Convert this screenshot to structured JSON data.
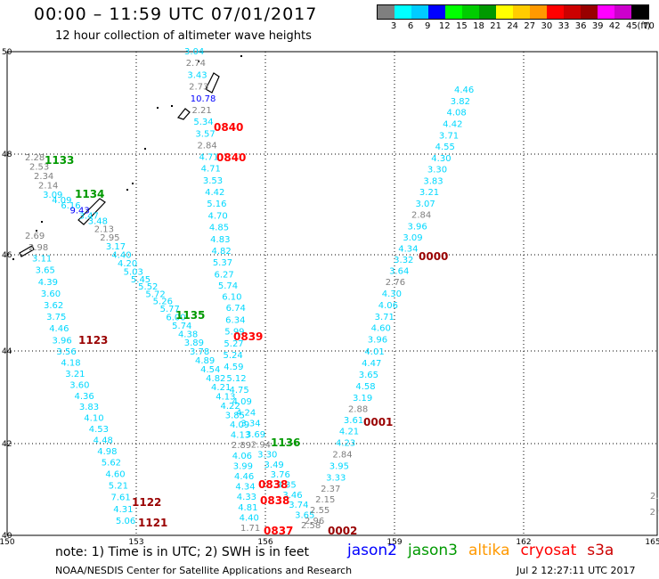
{
  "header": {
    "title": "00:00 – 11:59 UTC 07/01/2017",
    "subtitle": "12 hour collection of altimeter wave heights"
  },
  "legend": {
    "colors": [
      "#7f7f7f",
      "#00ffff",
      "#00ccff",
      "#0000ff",
      "#00ff00",
      "#00cc00",
      "#009900",
      "#ffff00",
      "#ffcc00",
      "#ff9900",
      "#ff0000",
      "#cc0000",
      "#990000",
      "#ff00ff",
      "#cc00cc",
      "#000000"
    ],
    "labels": [
      "3",
      "6",
      "9",
      "12",
      "15",
      "18",
      "21",
      "24",
      "27",
      "30",
      "33",
      "36",
      "39",
      "42",
      "45",
      "70",
      "(ft)"
    ]
  },
  "axes": {
    "x_labels": [
      "150",
      "153",
      "156",
      "159",
      "162",
      "165"
    ],
    "y_labels": [
      "50",
      "48",
      "46",
      "44",
      "42",
      "40"
    ]
  },
  "footer": {
    "note": "note:  1) Time is in UTC;  2) SWH is in feet",
    "satellites": [
      {
        "name": "jason2",
        "color": "#0000ff"
      },
      {
        "name": "jason3",
        "color": "#009900"
      },
      {
        "name": "altika",
        "color": "#ff9900"
      },
      {
        "name": "cryosat",
        "color": "#ff0000"
      },
      {
        "name": "s3a",
        "color": "#cc0000"
      }
    ],
    "credit": "NOAA/NESDIS Center for Satellite Applications and Research",
    "timestamp": "Jul  2 12:27:11 UTC 2017"
  },
  "time_labels": [
    {
      "text": "0840",
      "color": "#ff0000"
    },
    {
      "text": "0840",
      "color": "#ff0000"
    },
    {
      "text": "1133",
      "color": "#009900"
    },
    {
      "text": "1134",
      "color": "#009900"
    },
    {
      "text": "0000",
      "color": "#990000"
    },
    {
      "text": "1135",
      "color": "#009900"
    },
    {
      "text": "0839",
      "color": "#ff0000"
    },
    {
      "text": "1123",
      "color": "#990000"
    },
    {
      "text": "0001",
      "color": "#990000"
    },
    {
      "text": "1136",
      "color": "#009900"
    },
    {
      "text": "0838",
      "color": "#ff0000"
    },
    {
      "text": "0838",
      "color": "#ff0000"
    },
    {
      "text": "1122",
      "color": "#990000"
    },
    {
      "text": "1121",
      "color": "#990000"
    },
    {
      "text": "0837",
      "color": "#ff0000"
    },
    {
      "text": "0002",
      "color": "#990000"
    }
  ],
  "wave_heights": [
    "3.04",
    "2.74",
    "3.43",
    "2.73",
    "10.78",
    "2.21",
    "5.34",
    "3.57",
    "2.84",
    "4.71",
    "4.71",
    "3.53",
    "4.42",
    "5.16",
    "4.70",
    "4.85",
    "4.83",
    "4.82",
    "5.37",
    "6.27",
    "5.74",
    "6.10",
    "6.74",
    "6.34",
    "5.99",
    "5.27",
    "5.24",
    "4.59",
    "5.12",
    "4.75",
    "4.09",
    "4.24",
    "3.34",
    "3.69",
    "2.94",
    "3.30",
    "3.49",
    "3.76",
    "3.35",
    "3.46",
    "3.74",
    "3.65",
    "2.58",
    "2.28",
    "2.53",
    "2.34",
    "2.14",
    "3.09",
    "4.09",
    "6.16",
    "9.43",
    "3.47",
    "3.48",
    "2.13",
    "2.95",
    "3.17",
    "4.40",
    "4.20",
    "5.03",
    "5.45",
    "5.52",
    "5.72",
    "5.26",
    "5.77",
    "6.00",
    "5.74",
    "4.38",
    "3.89",
    "3.78",
    "4.89",
    "4.54",
    "4.82",
    "4.21",
    "4.13",
    "4.22",
    "3.85",
    "4.09",
    "4.13",
    "2.89",
    "4.06",
    "3.99",
    "4.46",
    "4.34",
    "4.33",
    "4.81",
    "4.40",
    "1.71",
    "2.69",
    "2.98",
    "3.11",
    "3.65",
    "4.39",
    "3.60",
    "3.62",
    "3.75",
    "4.46",
    "3.96",
    "3.56",
    "4.18",
    "3.21",
    "3.60",
    "4.36",
    "3.83",
    "4.10",
    "4.53",
    "4.48",
    "4.98",
    "5.62",
    "4.60",
    "5.21",
    "7.61",
    "4.31",
    "5.06",
    "4.46",
    "3.82",
    "4.08",
    "4.42",
    "3.71",
    "4.55",
    "4.30",
    "3.30",
    "3.83",
    "3.21",
    "3.07",
    "2.84",
    "3.96",
    "3.09",
    "4.34",
    "3.32",
    "3.64",
    "2.76",
    "4.30",
    "4.06",
    "3.71",
    "4.60",
    "3.96",
    "4.01",
    "4.47",
    "3.65",
    "4.58",
    "3.19",
    "2.88",
    "3.61",
    "4.21",
    "4.23",
    "2.84",
    "3.95",
    "3.33",
    "2.37",
    "2.15",
    "2.55",
    "2.96",
    "2.87",
    "2.95"
  ]
}
